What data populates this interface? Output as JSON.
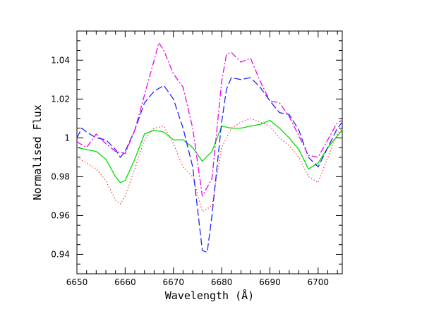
{
  "chart_data": {
    "type": "line",
    "title": "",
    "xlabel": "Wavelength (Å)",
    "ylabel": "Normalised Flux",
    "xlim": [
      6650,
      6705
    ],
    "ylim": [
      0.93,
      1.055
    ],
    "x_ticks": [
      6650,
      6660,
      6670,
      6680,
      6690,
      6700
    ],
    "x_tick_labels": [
      "6650",
      "6660",
      "6670",
      "6680",
      "6690",
      "6700"
    ],
    "y_ticks": [
      0.94,
      0.96,
      0.98,
      1.0,
      1.02,
      1.04
    ],
    "y_tick_labels": [
      "0.94",
      "0.96",
      "0.98",
      "1",
      "1.02",
      "1.04"
    ],
    "grid": false,
    "series": [
      {
        "color": "#00dd00",
        "style": "solid",
        "x": [
          6650,
          6652,
          6654,
          6656,
          6658,
          6659,
          6660,
          6662,
          6664,
          6666,
          6668,
          6670,
          6672,
          6674,
          6676,
          6678,
          6680,
          6682,
          6684,
          6686,
          6688,
          6690,
          6692,
          6694,
          6696,
          6698,
          6700,
          6702,
          6704,
          6705
        ],
        "y": [
          0.995,
          0.994,
          0.993,
          0.989,
          0.98,
          0.977,
          0.978,
          0.989,
          1.002,
          1.004,
          1.003,
          0.999,
          0.999,
          0.995,
          0.988,
          0.993,
          1.006,
          1.005,
          1.005,
          1.006,
          1.007,
          1.009,
          1.005,
          1.0,
          0.994,
          0.984,
          0.987,
          0.995,
          1.001,
          1.004
        ]
      },
      {
        "color": "#ff2222",
        "style": "dotted",
        "x": [
          6650,
          6652,
          6654,
          6656,
          6658,
          6659,
          6660,
          6662,
          6664,
          6666,
          6668,
          6670,
          6672,
          6674,
          6676,
          6678,
          6680,
          6682,
          6684,
          6686,
          6688,
          6690,
          6692,
          6694,
          6696,
          6698,
          6700,
          6702,
          6704,
          6705
        ],
        "y": [
          0.99,
          0.987,
          0.984,
          0.978,
          0.968,
          0.966,
          0.97,
          0.984,
          0.999,
          1.005,
          1.006,
          0.997,
          0.985,
          0.98,
          0.962,
          0.965,
          0.995,
          1.005,
          1.008,
          1.01,
          1.008,
          1.006,
          1.0,
          0.996,
          0.99,
          0.98,
          0.977,
          0.99,
          1.002,
          1.005
        ]
      },
      {
        "color": "#2222ff",
        "style": "dashed",
        "x": [
          6650,
          6651,
          6652,
          6654,
          6656,
          6658,
          6659,
          6660,
          6662,
          6664,
          6666,
          6668,
          6670,
          6672,
          6674,
          6676,
          6677,
          6678,
          6680,
          6681,
          6682,
          6684,
          6686,
          6688,
          6690,
          6692,
          6694,
          6696,
          6698,
          6700,
          6702,
          6704,
          6705
        ],
        "y": [
          1.0,
          1.005,
          1.003,
          1.0,
          0.999,
          0.994,
          0.99,
          0.993,
          1.004,
          1.018,
          1.024,
          1.027,
          1.02,
          1.005,
          0.985,
          0.942,
          0.941,
          0.96,
          1.008,
          1.025,
          1.031,
          1.03,
          1.031,
          1.026,
          1.019,
          1.013,
          1.012,
          1.004,
          0.99,
          0.985,
          0.995,
          1.005,
          1.008
        ]
      },
      {
        "color": "#ee00ee",
        "style": "dashdot",
        "x": [
          6650,
          6652,
          6654,
          6656,
          6658,
          6660,
          6662,
          6664,
          6666,
          6667,
          6668,
          6670,
          6672,
          6674,
          6676,
          6678,
          6680,
          6681,
          6682,
          6684,
          6686,
          6688,
          6690,
          6692,
          6694,
          6696,
          6698,
          6700,
          6702,
          6704,
          6705
        ],
        "y": [
          0.998,
          0.995,
          1.002,
          0.997,
          0.993,
          0.992,
          1.004,
          1.022,
          1.04,
          1.049,
          1.045,
          1.033,
          1.026,
          1.005,
          0.97,
          0.979,
          1.029,
          1.043,
          1.044,
          1.039,
          1.041,
          1.029,
          1.019,
          1.018,
          1.011,
          1.001,
          0.991,
          0.99,
          0.999,
          1.008,
          1.009
        ]
      }
    ]
  }
}
